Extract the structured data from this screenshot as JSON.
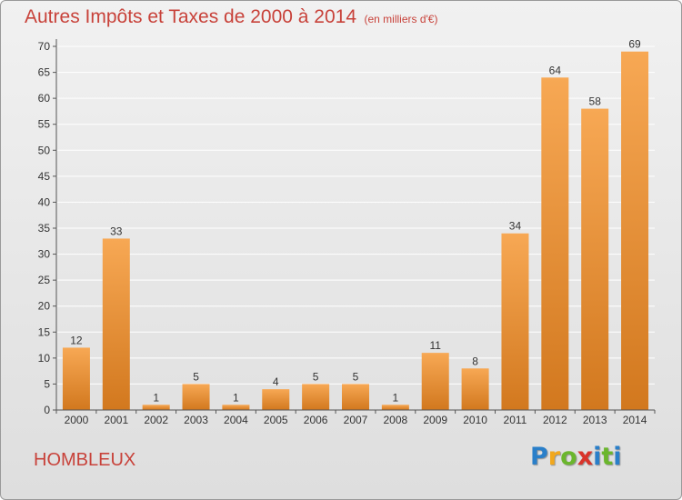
{
  "title": "Autres Impôts et Taxes de 2000 à 2014",
  "unit": "(en milliers d'€)",
  "commune": "HOMBLEUX",
  "logo": {
    "text": "Proxiti",
    "letters": [
      "P",
      "r",
      "o",
      "x",
      "i",
      "t",
      "i"
    ],
    "colors": [
      "#2a7fc9",
      "#f2a81d",
      "#6bb62d",
      "#d9342b",
      "#2a7fc9",
      "#6bb62d",
      "#2a7fc9"
    ]
  },
  "colors": {
    "title": "#c8423a",
    "bar_light": "#f7a854",
    "bar_dark": "#d2781e",
    "grid": "#ffffff",
    "axis": "#555555"
  },
  "chart_data": {
    "type": "bar",
    "categories": [
      "2000",
      "2001",
      "2002",
      "2003",
      "2004",
      "2005",
      "2006",
      "2007",
      "2008",
      "2009",
      "2010",
      "2011",
      "2012",
      "2013",
      "2014"
    ],
    "values": [
      12,
      33,
      1,
      5,
      1,
      4,
      5,
      5,
      1,
      11,
      8,
      34,
      64,
      58,
      69
    ],
    "ylim": [
      0,
      70
    ],
    "yticks": [
      0,
      5,
      10,
      15,
      20,
      25,
      30,
      35,
      40,
      45,
      50,
      55,
      60,
      65,
      70
    ],
    "grid": true,
    "xlabel": "",
    "ylabel": ""
  }
}
